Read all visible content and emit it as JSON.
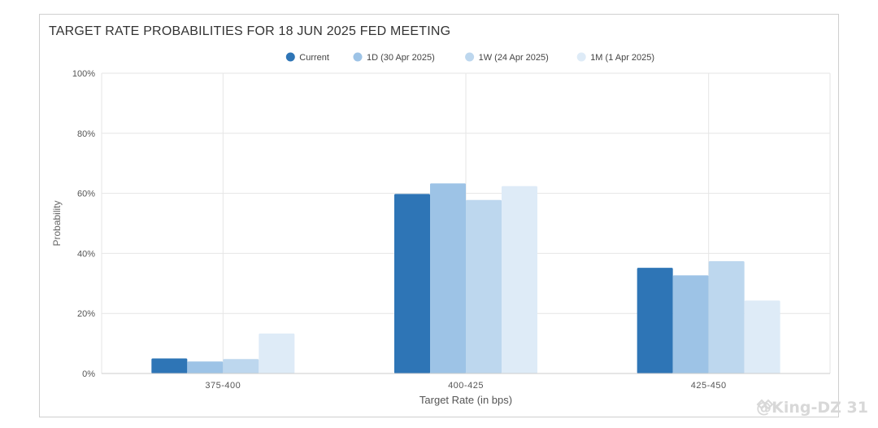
{
  "chart_data": {
    "type": "bar",
    "title": "TARGET RATE PROBABILITIES FOR 18 JUN 2025 FED MEETING",
    "xlabel": "Target Rate (in bps)",
    "ylabel": "Probability",
    "ylim": [
      0,
      100
    ],
    "yticks": [
      "0%",
      "20%",
      "40%",
      "60%",
      "80%",
      "100%"
    ],
    "categories": [
      "375-400",
      "400-425",
      "425-450"
    ],
    "grid": true,
    "legend_position": "top-center",
    "series": [
      {
        "name": "Current",
        "color": "#2e75b6",
        "values": [
          5.0,
          59.8,
          35.2
        ]
      },
      {
        "name": "1D (30 Apr 2025)",
        "color": "#9dc3e6",
        "values": [
          4.0,
          63.3,
          32.7
        ]
      },
      {
        "name": "1W (24 Apr 2025)",
        "color": "#bdd7ee",
        "values": [
          4.8,
          57.8,
          37.4
        ]
      },
      {
        "name": "1M (1 Apr 2025)",
        "color": "#deebf7",
        "values": [
          13.3,
          62.4,
          24.3
        ]
      }
    ]
  },
  "watermark": "@King-DZ 31"
}
